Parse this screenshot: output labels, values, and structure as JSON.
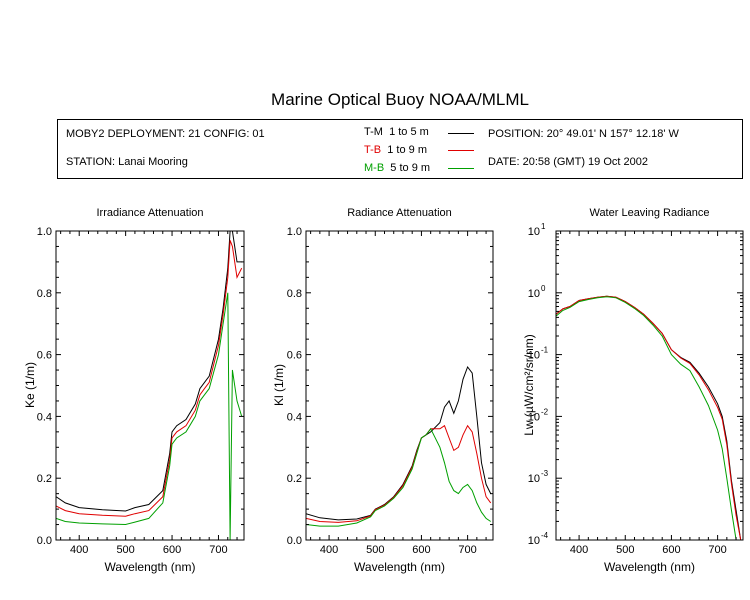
{
  "title": "Marine Optical Buoy NOAA/MLML",
  "info": {
    "deployment": "MOBY2 DEPLOYMENT: 21 CONFIG: 01",
    "station": "STATION: Lanai Mooring",
    "position": "POSITION: 20° 49.01' N   157° 12.18' W",
    "date": "DATE: 20:58 (GMT) 19 Oct 2002"
  },
  "legend": [
    {
      "code": "T-M",
      "range": "1 to 5  m",
      "color": "#000000"
    },
    {
      "code": "T-B",
      "range": "1 to 9  m",
      "color": "#e00000"
    },
    {
      "code": "M-B",
      "range": "5 to 9  m",
      "color": "#00a000"
    }
  ],
  "colors": {
    "T-M": "#000000",
    "T-B": "#e00000",
    "M-B": "#00a000"
  },
  "chart_data": [
    {
      "type": "line",
      "title": "Irradiance Attenuation",
      "xlabel": "Wavelength (nm)",
      "ylabel": "Ke  (1/m)",
      "xlim": [
        350,
        755
      ],
      "ylim": [
        0,
        1.0
      ],
      "xticks": [
        400,
        500,
        600,
        700
      ],
      "yticks": [
        0.0,
        0.2,
        0.4,
        0.6,
        0.8,
        1.0
      ],
      "ytick_labels": [
        "0.0",
        "0.2",
        "0.4",
        "0.6",
        "0.8",
        "1.0"
      ],
      "series": [
        {
          "name": "T-M",
          "x": [
            350,
            370,
            400,
            450,
            500,
            520,
            550,
            580,
            595,
            600,
            610,
            630,
            650,
            660,
            670,
            680,
            700,
            710,
            720,
            725,
            730,
            740,
            750
          ],
          "y": [
            0.14,
            0.12,
            0.105,
            0.098,
            0.094,
            0.105,
            0.115,
            0.16,
            0.28,
            0.35,
            0.37,
            0.39,
            0.44,
            0.49,
            0.51,
            0.53,
            0.65,
            0.75,
            0.88,
            1.0,
            1.0,
            0.9,
            0.9
          ]
        },
        {
          "name": "T-B",
          "x": [
            350,
            370,
            400,
            450,
            500,
            520,
            550,
            580,
            595,
            600,
            610,
            630,
            650,
            660,
            670,
            680,
            700,
            710,
            720,
            725,
            730,
            740,
            750
          ],
          "y": [
            0.11,
            0.095,
            0.085,
            0.08,
            0.077,
            0.085,
            0.095,
            0.14,
            0.26,
            0.33,
            0.35,
            0.37,
            0.42,
            0.47,
            0.49,
            0.51,
            0.63,
            0.73,
            0.85,
            0.97,
            0.95,
            0.85,
            0.88
          ]
        },
        {
          "name": "M-B",
          "x": [
            350,
            370,
            400,
            450,
            500,
            520,
            550,
            580,
            595,
            600,
            610,
            630,
            650,
            660,
            670,
            680,
            700,
            710,
            720,
            725,
            730,
            740,
            750
          ],
          "y": [
            0.07,
            0.06,
            0.055,
            0.052,
            0.05,
            0.058,
            0.07,
            0.12,
            0.24,
            0.31,
            0.33,
            0.35,
            0.4,
            0.45,
            0.47,
            0.49,
            0.6,
            0.7,
            0.8,
            0.0,
            0.55,
            0.45,
            0.4
          ]
        }
      ]
    },
    {
      "type": "line",
      "title": "Radiance Attenuation",
      "xlabel": "Wavelength (nm)",
      "ylabel": "Kl  (1/m)",
      "xlim": [
        350,
        755
      ],
      "ylim": [
        0,
        1.0
      ],
      "xticks": [
        400,
        500,
        600,
        700
      ],
      "yticks": [
        0.0,
        0.2,
        0.4,
        0.6,
        0.8,
        1.0
      ],
      "ytick_labels": [
        "0.0",
        "0.2",
        "0.4",
        "0.6",
        "0.8",
        "1.0"
      ],
      "series": [
        {
          "name": "T-M",
          "x": [
            350,
            380,
            420,
            460,
            490,
            500,
            520,
            540,
            560,
            580,
            590,
            600,
            610,
            620,
            640,
            650,
            660,
            670,
            680,
            690,
            700,
            710,
            720,
            730,
            740,
            750
          ],
          "y": [
            0.085,
            0.072,
            0.065,
            0.068,
            0.08,
            0.1,
            0.115,
            0.14,
            0.18,
            0.24,
            0.29,
            0.33,
            0.34,
            0.35,
            0.38,
            0.43,
            0.45,
            0.41,
            0.45,
            0.52,
            0.56,
            0.54,
            0.4,
            0.25,
            0.18,
            0.15
          ]
        },
        {
          "name": "T-B",
          "x": [
            350,
            380,
            420,
            460,
            490,
            500,
            520,
            540,
            560,
            580,
            590,
            600,
            610,
            620,
            640,
            650,
            660,
            670,
            680,
            690,
            700,
            710,
            720,
            730,
            740,
            750
          ],
          "y": [
            0.07,
            0.06,
            0.057,
            0.062,
            0.078,
            0.098,
            0.113,
            0.138,
            0.176,
            0.236,
            0.285,
            0.33,
            0.34,
            0.36,
            0.36,
            0.37,
            0.33,
            0.29,
            0.3,
            0.34,
            0.37,
            0.35,
            0.28,
            0.2,
            0.14,
            0.12
          ]
        },
        {
          "name": "M-B",
          "x": [
            350,
            380,
            420,
            460,
            490,
            500,
            520,
            540,
            560,
            580,
            590,
            600,
            610,
            620,
            640,
            650,
            660,
            670,
            680,
            690,
            700,
            710,
            720,
            730,
            740,
            750
          ],
          "y": [
            0.05,
            0.045,
            0.045,
            0.055,
            0.075,
            0.095,
            0.11,
            0.135,
            0.17,
            0.23,
            0.28,
            0.33,
            0.34,
            0.36,
            0.3,
            0.25,
            0.19,
            0.16,
            0.15,
            0.17,
            0.18,
            0.16,
            0.12,
            0.09,
            0.07,
            0.06
          ]
        }
      ]
    },
    {
      "type": "line",
      "title": "Water Leaving Radiance",
      "xlabel": "Wavelength (nm)",
      "ylabel": "Lw  (µW/cm²/sr/nm)",
      "log_y": true,
      "xlim": [
        350,
        755
      ],
      "ylim": [
        0.0001,
        10
      ],
      "xticks": [
        400,
        500,
        600,
        700
      ],
      "yticks": [
        0.0001,
        0.001,
        0.01,
        0.1,
        1,
        10
      ],
      "ytick_base": "10",
      "ytick_exponents": [
        "-4",
        "-3",
        "-2",
        "-1",
        "0",
        "1"
      ],
      "series": [
        {
          "name": "T-M",
          "x": [
            350,
            365,
            380,
            400,
            420,
            440,
            460,
            480,
            500,
            520,
            540,
            560,
            580,
            600,
            620,
            640,
            660,
            680,
            700,
            710,
            720,
            730,
            740,
            750
          ],
          "y": [
            0.45,
            0.55,
            0.6,
            0.75,
            0.8,
            0.85,
            0.88,
            0.85,
            0.72,
            0.58,
            0.45,
            0.32,
            0.22,
            0.12,
            0.09,
            0.075,
            0.05,
            0.03,
            0.016,
            0.01,
            0.004,
            0.0009,
            0.0003,
            0.0001
          ]
        },
        {
          "name": "T-B",
          "x": [
            350,
            365,
            380,
            400,
            420,
            440,
            460,
            480,
            500,
            520,
            540,
            560,
            580,
            600,
            620,
            640,
            660,
            680,
            700,
            710,
            720,
            730,
            740,
            750
          ],
          "y": [
            0.45,
            0.55,
            0.6,
            0.75,
            0.8,
            0.85,
            0.88,
            0.85,
            0.72,
            0.58,
            0.45,
            0.32,
            0.22,
            0.12,
            0.088,
            0.072,
            0.047,
            0.027,
            0.014,
            0.009,
            0.0035,
            0.0008,
            0.00025,
            0.0001
          ]
        },
        {
          "name": "M-B",
          "x": [
            350,
            365,
            380,
            400,
            420,
            440,
            460,
            480,
            500,
            520,
            540,
            560,
            580,
            600,
            620,
            640,
            660,
            680,
            700,
            710,
            720,
            730,
            740,
            750
          ],
          "y": [
            0.42,
            0.52,
            0.58,
            0.72,
            0.78,
            0.83,
            0.86,
            0.83,
            0.7,
            0.56,
            0.43,
            0.3,
            0.2,
            0.1,
            0.07,
            0.055,
            0.03,
            0.015,
            0.006,
            0.003,
            0.001,
            0.0003,
            0.0001,
            0.0001
          ]
        }
      ]
    }
  ]
}
